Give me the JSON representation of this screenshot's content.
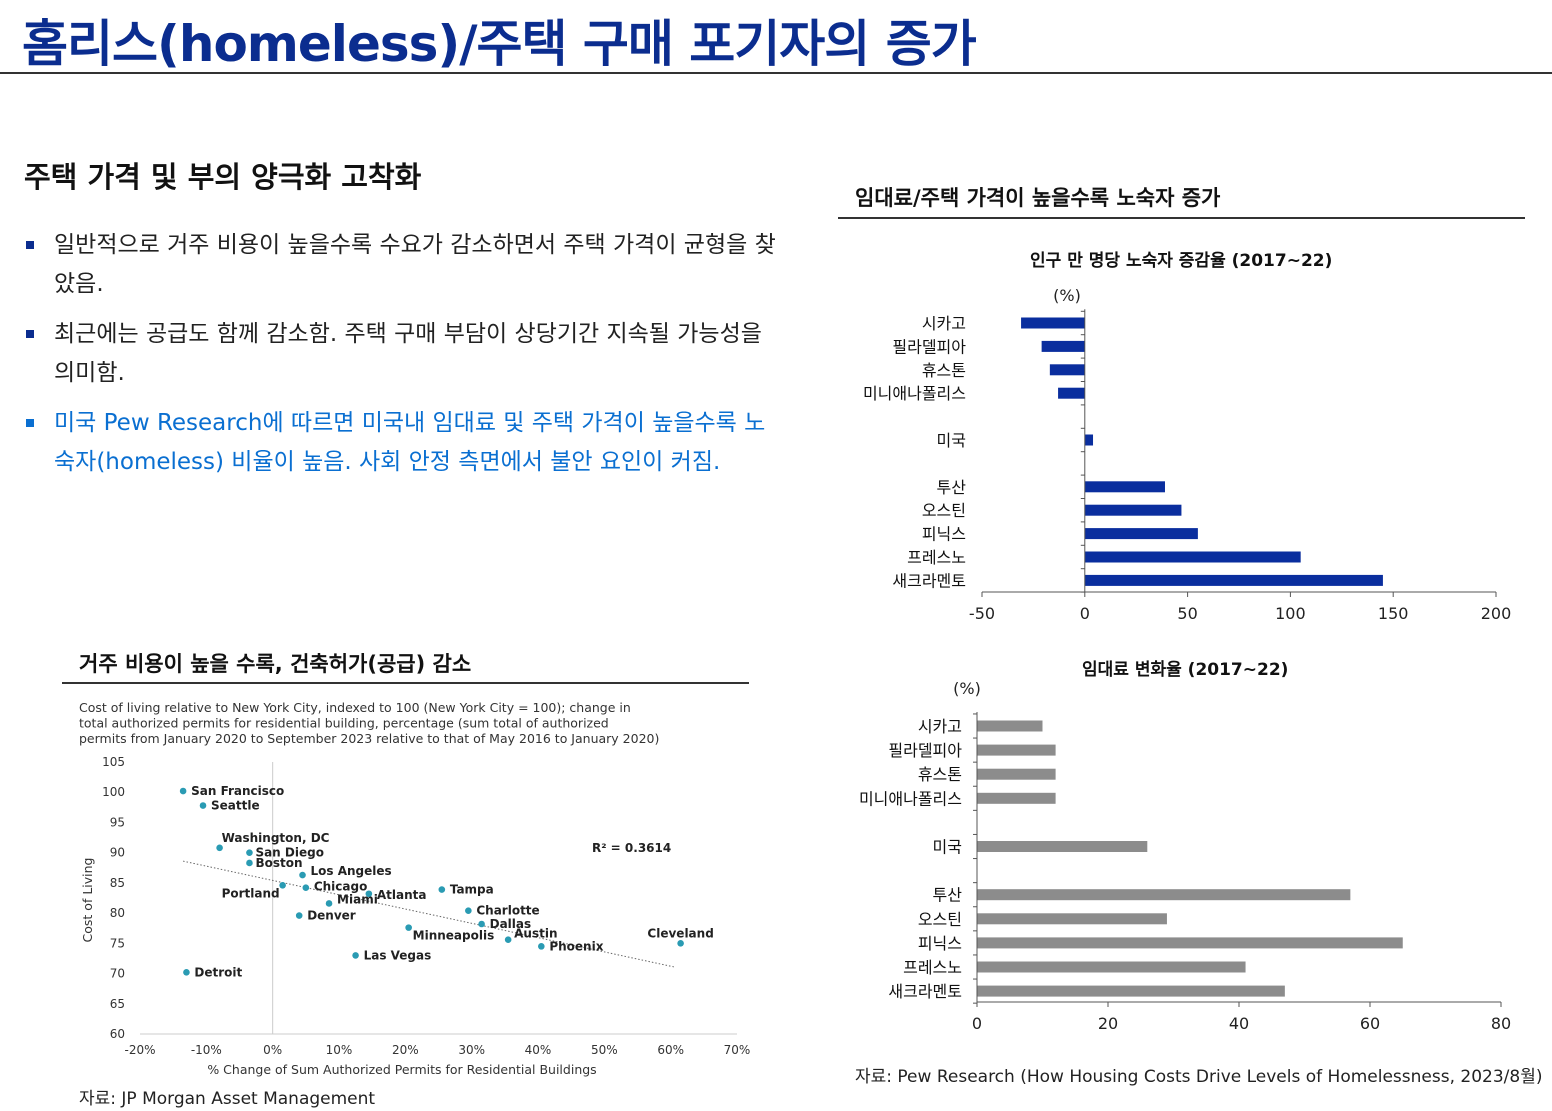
{
  "page": {
    "title": "홈리스(homeless)/주택 구매 포기자의 증가",
    "section_heading": "주택 가격 및 부의 양극화 고착화",
    "bullets": [
      "일반적으로 거주 비용이 높을수록 수요가 감소하면서 주택 가격이 균형을 찾았음.",
      "최근에는 공급도 함께 감소함. 주택 구매 부담이 상당기간 지속될 가능성을 의미함.",
      "미국 Pew Research에 따르면 미국내 임대료 및 주택 가격이 높을수록 노숙자(homeless) 비율이 높음. 사회 안정 측면에서 불안 요인이 커짐."
    ],
    "right_panel_heading": "임대료/주택 가격이 높을수록 노숙자 증가",
    "left_panel_heading": "거주 비용이 높을 수록, 건축허가(공급) 감소",
    "source_left": "자료: JP Morgan Asset Management",
    "source_right": "자료: Pew Research (How Housing Costs Drive Levels of Homelessness, 2023/8월)",
    "colors": {
      "title": "#0b2d8f",
      "bar_blue": "#0a2e9e",
      "bar_gray": "#8c8c8c",
      "dot": "#2a9bb3",
      "link_blue": "#0a6fd1"
    }
  },
  "chart_data": [
    {
      "id": "homeless_change",
      "type": "bar",
      "orientation": "horizontal",
      "title": "인구 만 명당 노숙자 증감율 (2017~22)",
      "unit": "(%)",
      "categories": [
        "시카고",
        "필라델피아",
        "휴스톤",
        "미니애나폴리스",
        "미국",
        "투산",
        "오스틴",
        "피닉스",
        "프레스노",
        "새크라멘토"
      ],
      "gap_after_index": [
        3,
        4
      ],
      "values": [
        -31,
        -21,
        -17,
        -13,
        4,
        39,
        47,
        55,
        105,
        145
      ],
      "xlim": [
        -50,
        200
      ],
      "xticks": [
        -50,
        0,
        50,
        100,
        150,
        200
      ],
      "color": "#0a2e9e"
    },
    {
      "id": "rent_change",
      "type": "bar",
      "orientation": "horizontal",
      "title": "임대료 변화율 (2017~22)",
      "unit": "(%)",
      "categories": [
        "시카고",
        "필라델피아",
        "휴스톤",
        "미니애나폴리스",
        "미국",
        "투산",
        "오스틴",
        "피닉스",
        "프레스노",
        "새크라멘토"
      ],
      "gap_after_index": [
        3,
        4
      ],
      "values": [
        10,
        12,
        12,
        12,
        26,
        57,
        29,
        65,
        41,
        47
      ],
      "xlim": [
        0,
        80
      ],
      "xticks": [
        0,
        20,
        40,
        60,
        80
      ],
      "color": "#8c8c8c"
    },
    {
      "id": "cost_vs_permits",
      "type": "scatter",
      "subtitle": "Cost of living relative to New York City, indexed to 100 (New York City = 100); change in total authorized permits for residential building, percentage (sum total of authorized permits from January 2020 to September 2023 relative to that of May 2016 to January 2020)",
      "xlabel": "% Change of Sum Authorized Permits for Residential Buildings",
      "ylabel": "Cost of Living",
      "xlim": [
        -20,
        70
      ],
      "ylim": [
        60,
        105
      ],
      "xticks": [
        "-20%",
        "-10%",
        "0%",
        "10%",
        "20%",
        "30%",
        "40%",
        "50%",
        "60%",
        "70%"
      ],
      "yticks": [
        60,
        65,
        70,
        75,
        80,
        85,
        90,
        95,
        100,
        105
      ],
      "annotation": "R² = 0.3614",
      "trendline": {
        "x": [
          -13.5,
          60.5
        ],
        "y": [
          88.6,
          71.1
        ]
      },
      "points": [
        {
          "label": "San Francisco",
          "x": -13.5,
          "y": 100.2
        },
        {
          "label": "Seattle",
          "x": -10.5,
          "y": 97.8
        },
        {
          "label": "Washington, DC",
          "x": -8.0,
          "y": 90.8
        },
        {
          "label": "San Diego",
          "x": -3.5,
          "y": 90.0
        },
        {
          "label": "Boston",
          "x": -3.5,
          "y": 88.3
        },
        {
          "label": "Los Angeles",
          "x": 4.5,
          "y": 86.3
        },
        {
          "label": "Portland",
          "x": 1.5,
          "y": 84.6
        },
        {
          "label": "Chicago",
          "x": 5.0,
          "y": 84.2
        },
        {
          "label": "Atlanta",
          "x": 14.5,
          "y": 83.2
        },
        {
          "label": "Tampa",
          "x": 25.5,
          "y": 83.9
        },
        {
          "label": "Miami",
          "x": 8.5,
          "y": 81.6
        },
        {
          "label": "Denver",
          "x": 4.0,
          "y": 79.6
        },
        {
          "label": "Charlotte",
          "x": 29.5,
          "y": 80.4
        },
        {
          "label": "Dallas",
          "x": 31.5,
          "y": 78.2
        },
        {
          "label": "Minneapolis",
          "x": 20.5,
          "y": 77.6
        },
        {
          "label": "Austin",
          "x": 35.5,
          "y": 75.6
        },
        {
          "label": "Phoenix",
          "x": 40.5,
          "y": 74.5
        },
        {
          "label": "Cleveland",
          "x": 61.5,
          "y": 75.0
        },
        {
          "label": "Las Vegas",
          "x": 12.5,
          "y": 73.0
        },
        {
          "label": "Detroit",
          "x": -13.0,
          "y": 70.2
        }
      ]
    }
  ]
}
